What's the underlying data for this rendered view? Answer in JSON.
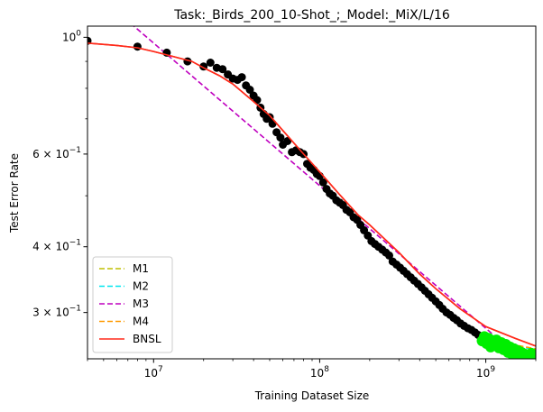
{
  "chart_data": {
    "type": "line",
    "title": "Task:_Birds_200_10-Shot_;_Model:_MiX/L/16",
    "xlabel": "Training Dataset Size",
    "ylabel": "Test Error Rate",
    "x_scale": "log",
    "y_scale": "log",
    "xlim": [
      4000000,
      2000000000
    ],
    "ylim": [
      0.245,
      1.05
    ],
    "x_ticks": [
      {
        "value": 10000000,
        "base": "10",
        "exp": "7"
      },
      {
        "value": 100000000,
        "base": "10",
        "exp": "8"
      },
      {
        "value": 1000000000,
        "base": "10",
        "exp": "9"
      }
    ],
    "y_ticks": [
      {
        "value": 1.0,
        "base": "10",
        "exp": "0",
        "mult": ""
      },
      {
        "value": 0.6,
        "base": "10",
        "exp": "−1",
        "mult": "6 × "
      },
      {
        "value": 0.4,
        "base": "10",
        "exp": "−1",
        "mult": "4 × "
      },
      {
        "value": 0.3,
        "base": "10",
        "exp": "−1",
        "mult": "3 × "
      }
    ],
    "y_minor_ticks": [
      0.9,
      0.8,
      0.7,
      0.5
    ],
    "legend_position": "lower-left",
    "series": [
      {
        "name": "M1",
        "style": "dashed",
        "color": "#bfbf00",
        "x": [
          900000000,
          2000000000
        ],
        "y": [
          0.268,
          0.255
        ]
      },
      {
        "name": "M2",
        "style": "dashed",
        "color": "#00e5ee",
        "x": [
          900000000,
          2000000000
        ],
        "y": [
          0.268,
          0.255
        ]
      },
      {
        "name": "M3",
        "style": "dashed",
        "color": "#bf00bf",
        "x": [
          4000000,
          2000000000
        ],
        "y": [
          1.25,
          0.232
        ]
      },
      {
        "name": "M4",
        "style": "dashed",
        "color": "#ff9900",
        "x": [
          900000000,
          2000000000
        ],
        "y": [
          0.268,
          0.256
        ]
      },
      {
        "name": "BNSL",
        "style": "solid",
        "color": "#ff2a1a",
        "x": [
          4000000,
          6000000,
          8000000,
          10000000,
          13000000,
          17000000,
          20000000,
          25000000,
          30000000,
          40000000,
          50000000,
          60000000,
          80000000,
          100000000,
          130000000,
          170000000,
          200000000,
          300000000,
          400000000,
          500000000,
          700000000,
          1000000000,
          1500000000,
          2000000000
        ],
        "y": [
          0.975,
          0.965,
          0.955,
          0.94,
          0.92,
          0.9,
          0.875,
          0.845,
          0.815,
          0.755,
          0.71,
          0.665,
          0.6,
          0.555,
          0.505,
          0.46,
          0.44,
          0.39,
          0.355,
          0.333,
          0.305,
          0.282,
          0.268,
          0.259
        ]
      }
    ],
    "train_points": {
      "color": "#000000",
      "x": [
        4000000,
        8000000,
        12000000,
        16000000,
        20000000,
        22000000,
        24000000,
        26000000,
        28000000,
        30000000,
        32000000,
        34000000,
        36000000,
        38000000,
        40000000,
        42000000,
        44000000,
        46000000,
        48000000,
        50000000,
        52000000,
        55000000,
        58000000,
        60000000,
        64000000,
        68000000,
        72000000,
        76000000,
        80000000,
        84000000,
        88000000,
        92000000,
        96000000,
        100000000,
        105000000,
        110000000,
        115000000,
        120000000,
        126000000,
        132000000,
        138000000,
        145000000,
        152000000,
        160000000,
        168000000,
        176000000,
        185000000,
        195000000,
        205000000,
        215000000,
        226000000,
        238000000,
        250000000,
        262000000,
        275000000,
        290000000,
        305000000,
        320000000,
        336000000,
        353000000,
        370000000,
        390000000,
        410000000,
        430000000,
        452000000,
        475000000,
        500000000,
        525000000,
        550000000,
        580000000,
        610000000,
        640000000,
        670000000,
        705000000,
        740000000,
        780000000,
        820000000,
        860000000,
        900000000
      ],
      "y": [
        0.985,
        0.96,
        0.935,
        0.9,
        0.88,
        0.895,
        0.875,
        0.87,
        0.85,
        0.835,
        0.83,
        0.84,
        0.81,
        0.795,
        0.775,
        0.76,
        0.735,
        0.715,
        0.7,
        0.705,
        0.685,
        0.66,
        0.645,
        0.625,
        0.635,
        0.605,
        0.61,
        0.605,
        0.6,
        0.575,
        0.565,
        0.56,
        0.55,
        0.545,
        0.53,
        0.515,
        0.505,
        0.5,
        0.49,
        0.485,
        0.48,
        0.47,
        0.465,
        0.455,
        0.45,
        0.44,
        0.43,
        0.42,
        0.41,
        0.405,
        0.4,
        0.395,
        0.39,
        0.385,
        0.375,
        0.37,
        0.365,
        0.36,
        0.355,
        0.35,
        0.345,
        0.34,
        0.335,
        0.33,
        0.325,
        0.32,
        0.315,
        0.31,
        0.305,
        0.3,
        0.297,
        0.293,
        0.29,
        0.286,
        0.283,
        0.28,
        0.278,
        0.275,
        0.272
      ]
    },
    "test_points": {
      "color": "#00ee00",
      "x": [
        950000000,
        980000000,
        1010000000,
        1040000000,
        1070000000,
        1100000000,
        1130000000,
        1160000000,
        1200000000,
        1240000000,
        1280000000,
        1320000000,
        1360000000,
        1400000000,
        1440000000,
        1480000000,
        1520000000,
        1560000000,
        1600000000,
        1640000000,
        1680000000,
        1720000000,
        1760000000,
        1800000000,
        1840000000,
        1880000000,
        1920000000
      ],
      "y": [
        0.265,
        0.27,
        0.262,
        0.268,
        0.258,
        0.265,
        0.26,
        0.266,
        0.257,
        0.263,
        0.255,
        0.261,
        0.252,
        0.258,
        0.25,
        0.256,
        0.248,
        0.254,
        0.247,
        0.252,
        0.246,
        0.25,
        0.245,
        0.249,
        0.246,
        0.251,
        0.248
      ]
    }
  }
}
